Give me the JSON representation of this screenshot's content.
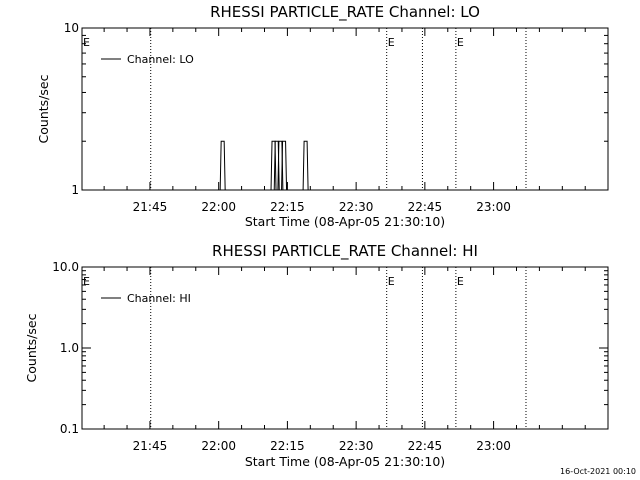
{
  "chart_data": [
    {
      "type": "line",
      "title": "RHESSI PARTICLE_RATE Channel: LO",
      "xlabel": "Start Time (08-Apr-05 21:30:10)",
      "ylabel": "Counts/sec",
      "y_scale": "log",
      "ylim": [
        1,
        10
      ],
      "xlim_minutes": [
        0,
        114.8
      ],
      "x_tick_labels": [
        "21:45",
        "22:00",
        "22:15",
        "22:30",
        "22:45",
        "23:00"
      ],
      "x_ticks_minutes": [
        14.83,
        29.83,
        44.83,
        59.83,
        74.83,
        89.83
      ],
      "y_tick_labels": [
        "1",
        "10"
      ],
      "y_ticks": [
        1,
        10
      ],
      "legend": {
        "entries": [
          "Channel: LO"
        ],
        "position": "top-left"
      },
      "event_lines_minutes": [
        15.0,
        66.5,
        74.3,
        81.6,
        96.9
      ],
      "event_flags": [
        {
          "label": "E",
          "x_minutes": 0.0
        },
        {
          "label": "E",
          "x_minutes": 66.5
        },
        {
          "label": "E",
          "x_minutes": 81.6
        }
      ],
      "series": [
        {
          "name": "Channel: LO",
          "peaks": [
            {
              "x_minutes": 30.7,
              "y": 2
            },
            {
              "x_minutes": 41.8,
              "y": 2
            },
            {
              "x_minutes": 42.5,
              "y": 2
            },
            {
              "x_minutes": 43.3,
              "y": 2
            },
            {
              "x_minutes": 44.1,
              "y": 2
            },
            {
              "x_minutes": 48.8,
              "y": 2
            }
          ]
        }
      ]
    },
    {
      "type": "line",
      "title": "RHESSI PARTICLE_RATE Channel: HI",
      "xlabel": "Start Time (08-Apr-05 21:30:10)",
      "ylabel": "Counts/sec",
      "y_scale": "log",
      "ylim": [
        0.1,
        10
      ],
      "xlim_minutes": [
        0,
        114.8
      ],
      "x_tick_labels": [
        "21:45",
        "22:00",
        "22:15",
        "22:30",
        "22:45",
        "23:00"
      ],
      "x_ticks_minutes": [
        14.83,
        29.83,
        44.83,
        59.83,
        74.83,
        89.83
      ],
      "y_tick_labels": [
        "0.1",
        "1.0",
        "10.0"
      ],
      "y_ticks": [
        0.1,
        1,
        10
      ],
      "legend": {
        "entries": [
          "Channel: HI"
        ],
        "position": "top-left"
      },
      "event_lines_minutes": [
        15.0,
        66.5,
        74.3,
        81.6,
        96.9
      ],
      "event_flags": [
        {
          "label": "E",
          "x_minutes": 0.0
        },
        {
          "label": "E",
          "x_minutes": 66.5
        },
        {
          "label": "E",
          "x_minutes": 81.6
        }
      ],
      "series": [
        {
          "name": "Channel: HI",
          "peaks": []
        }
      ]
    }
  ],
  "footer": {
    "timestamp": "16-Oct-2021 00:10"
  }
}
